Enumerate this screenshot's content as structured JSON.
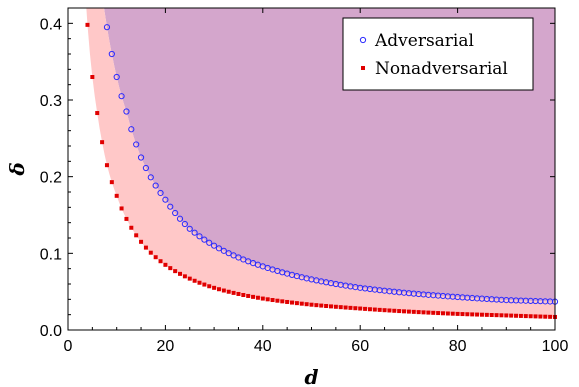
{
  "chart_data": {
    "type": "scatter",
    "xlabel": "d",
    "ylabel": "δ",
    "xlim": [
      0,
      100
    ],
    "ylim": [
      0,
      0.42
    ],
    "x_ticks": [
      "0",
      "20",
      "40",
      "60",
      "80",
      "100"
    ],
    "y_ticks": [
      "0.0",
      "0.1",
      "0.2",
      "0.3",
      "0.4"
    ],
    "grid": false,
    "legend_position": "top-right",
    "regions": [
      {
        "label": "above adversarial curve",
        "color": "#d4a6cc"
      },
      {
        "label": "between curves",
        "color": "#ffc8c8"
      }
    ],
    "series": [
      {
        "name": "Adversarial",
        "marker": "open-circle",
        "color": "#2a2aff",
        "x_start": 8,
        "x_end": 100,
        "points": [
          [
            8,
            0.395
          ],
          [
            9,
            0.36
          ],
          [
            10,
            0.33
          ],
          [
            11,
            0.305
          ],
          [
            12,
            0.285
          ],
          [
            15,
            0.225
          ],
          [
            20,
            0.17
          ],
          [
            25,
            0.132
          ],
          [
            30,
            0.11
          ],
          [
            40,
            0.083
          ],
          [
            50,
            0.066
          ],
          [
            60,
            0.055
          ],
          [
            70,
            0.048
          ],
          [
            80,
            0.043
          ],
          [
            90,
            0.039
          ],
          [
            100,
            0.037
          ]
        ]
      },
      {
        "name": "Nonadversarial",
        "marker": "filled-square",
        "color": "#e00000",
        "x_start": 4,
        "x_end": 100,
        "points": [
          [
            4,
            0.398
          ],
          [
            5,
            0.33
          ],
          [
            6,
            0.283
          ],
          [
            7,
            0.245
          ],
          [
            8,
            0.215
          ],
          [
            10,
            0.175
          ],
          [
            15,
            0.115
          ],
          [
            20,
            0.085
          ],
          [
            25,
            0.067
          ],
          [
            30,
            0.055
          ],
          [
            40,
            0.041
          ],
          [
            50,
            0.033
          ],
          [
            60,
            0.028
          ],
          [
            70,
            0.024
          ],
          [
            80,
            0.021
          ],
          [
            90,
            0.019
          ],
          [
            100,
            0.017
          ]
        ]
      }
    ]
  }
}
